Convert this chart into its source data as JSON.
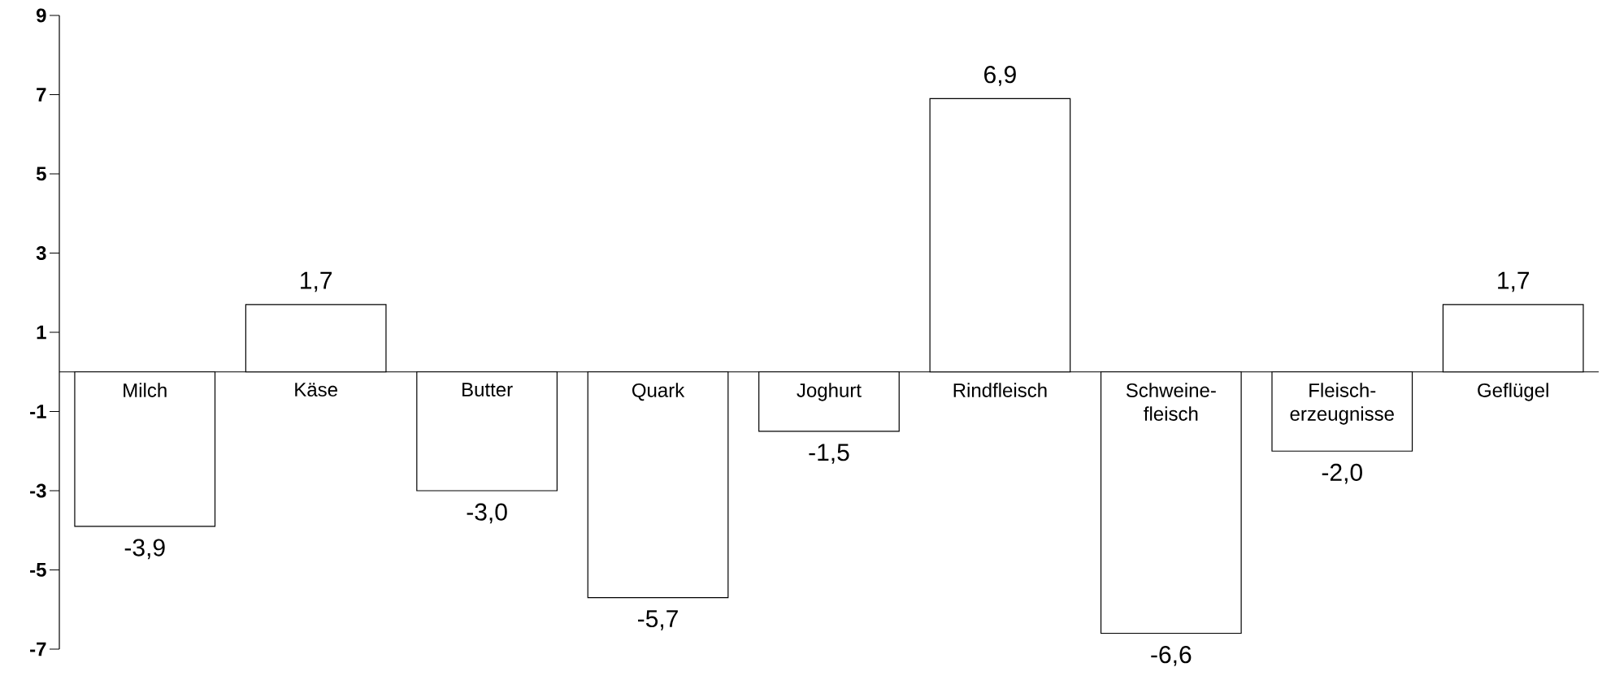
{
  "chart_data": {
    "type": "bar",
    "categories": [
      "Milch",
      "Käse",
      "Butter",
      "Quark",
      "Joghurt",
      "Rindfleisch",
      "Schweine-fleisch",
      "Fleisch-erzeugnisse",
      "Geflügel"
    ],
    "values": [
      -3.9,
      1.7,
      -3.0,
      -5.7,
      -1.5,
      6.9,
      -6.6,
      -2.0,
      1.7
    ],
    "value_labels": [
      "-3,9",
      "1,7",
      "-3,0",
      "-5,7",
      "-1,5",
      "6,9",
      "-6,6",
      "-2,0",
      "1,7"
    ],
    "color": "#ffffff",
    "ylim": [
      -7,
      9
    ],
    "yticks": [
      -7,
      -5,
      -3,
      -1,
      1,
      3,
      5,
      7,
      9
    ],
    "grid": false
  }
}
